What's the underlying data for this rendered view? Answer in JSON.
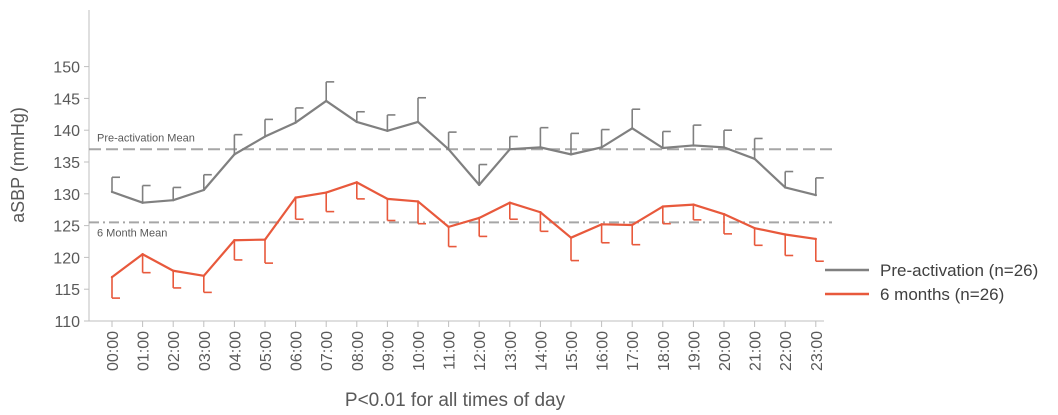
{
  "chart_data": {
    "type": "line",
    "title": "",
    "xlabel": "",
    "ylabel": "aSBP (mmHg)",
    "footnote": "P<0.01 for all times of day",
    "ylim": [
      110,
      150
    ],
    "yticks": [
      110,
      115,
      120,
      125,
      130,
      135,
      140,
      145,
      150
    ],
    "categories": [
      "00:00",
      "01:00",
      "02:00",
      "03:00",
      "04:00",
      "05:00",
      "06:00",
      "07:00",
      "08:00",
      "09:00",
      "10:00",
      "11:00",
      "12:00",
      "13:00",
      "14:00",
      "15:00",
      "16:00",
      "17:00",
      "18:00",
      "19:00",
      "20:00",
      "21:00",
      "22:00",
      "23:00"
    ],
    "series": [
      {
        "name": "Pre-activation (n=26)",
        "color": "#808080",
        "error_direction": "up",
        "values": [
          130.3,
          128.6,
          129.0,
          130.6,
          136.2,
          139.0,
          141.2,
          144.6,
          141.3,
          139.9,
          141.3,
          137.0,
          131.4,
          137.0,
          137.3,
          136.2,
          137.3,
          140.3,
          137.2,
          137.6,
          137.3,
          135.5,
          131.0,
          129.8
        ],
        "errors": [
          2.3,
          2.7,
          2.0,
          2.4,
          3.1,
          2.7,
          2.3,
          3.0,
          1.6,
          2.5,
          3.8,
          2.7,
          3.2,
          2.0,
          3.1,
          3.3,
          2.8,
          3.0,
          2.6,
          3.2,
          2.7,
          3.2,
          2.5,
          2.7
        ]
      },
      {
        "name": "6 months (n=26)",
        "color": "#E8593C",
        "error_direction": "down",
        "values": [
          116.9,
          120.5,
          117.9,
          117.1,
          122.7,
          122.8,
          129.4,
          130.2,
          131.8,
          129.2,
          128.8,
          124.8,
          126.2,
          128.6,
          127.1,
          123.1,
          125.2,
          125.1,
          128.0,
          128.3,
          126.8,
          124.6,
          123.6,
          122.9
        ],
        "errors": [
          3.3,
          2.9,
          2.7,
          2.6,
          3.1,
          3.7,
          3.4,
          3.0,
          2.6,
          3.4,
          3.5,
          3.1,
          2.9,
          2.6,
          3.0,
          3.6,
          2.9,
          3.1,
          2.7,
          2.4,
          3.1,
          2.7,
          3.3,
          3.5
        ]
      }
    ],
    "reference_lines": [
      {
        "label": "Pre-activation Mean",
        "value": 137.0,
        "color": "#a6a6a6",
        "style": "dashed"
      },
      {
        "label": "6 Month Mean",
        "value": 125.5,
        "color": "#a6a6a6",
        "style": "dash-dot"
      }
    ],
    "legend": {
      "placement": "right"
    }
  }
}
